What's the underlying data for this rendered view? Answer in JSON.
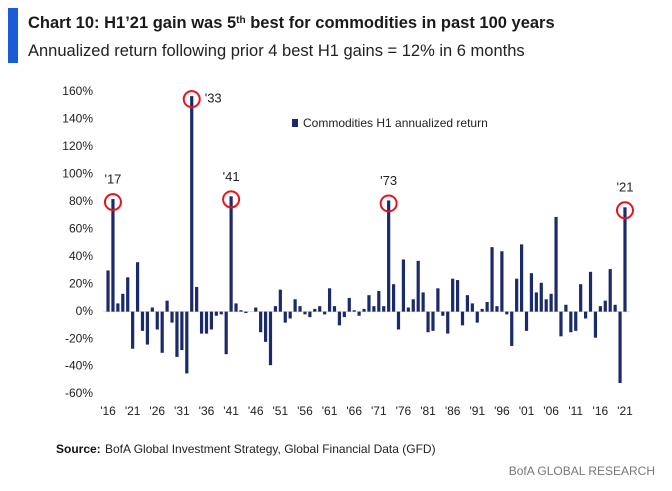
{
  "chart_data": {
    "type": "bar",
    "title": [
      "Chart 10: H1’21 gain was 5",
      "th",
      " best for commodities in past 100 years"
    ],
    "subtitle": "Annualized return following prior 4 best H1 gains = 12% in 6 months",
    "x": [
      1916,
      1917,
      1918,
      1919,
      1920,
      1921,
      1922,
      1923,
      1924,
      1925,
      1926,
      1927,
      1928,
      1929,
      1930,
      1931,
      1932,
      1933,
      1934,
      1935,
      1936,
      1937,
      1938,
      1939,
      1940,
      1941,
      1942,
      1943,
      1944,
      1945,
      1946,
      1947,
      1948,
      1949,
      1950,
      1951,
      1952,
      1953,
      1954,
      1955,
      1956,
      1957,
      1958,
      1959,
      1960,
      1961,
      1962,
      1963,
      1964,
      1965,
      1966,
      1967,
      1968,
      1969,
      1970,
      1971,
      1972,
      1973,
      1974,
      1975,
      1976,
      1977,
      1978,
      1979,
      1980,
      1981,
      1982,
      1983,
      1984,
      1985,
      1986,
      1987,
      1988,
      1989,
      1990,
      1991,
      1992,
      1993,
      1994,
      1995,
      1996,
      1997,
      1998,
      1999,
      2000,
      2001,
      2002,
      2003,
      2004,
      2005,
      2006,
      2007,
      2008,
      2009,
      2010,
      2011,
      2012,
      2013,
      2014,
      2015,
      2016,
      2017,
      2018,
      2019,
      2020,
      2021
    ],
    "series": [
      {
        "name": "Commodities H1 annualized return",
        "color": "#1b2a6b",
        "values": [
          30,
          82,
          6,
          13,
          25,
          -27,
          36,
          -14,
          -24,
          3,
          -13,
          -30,
          8,
          -8,
          -33,
          -28,
          -45,
          157,
          18,
          -16,
          -16,
          -13,
          -3,
          -2,
          -31,
          84,
          6,
          1,
          -1,
          0,
          3,
          -15,
          -22,
          -39,
          4,
          16,
          -8,
          -5,
          9,
          4,
          -2,
          -4,
          2,
          4,
          -2,
          17,
          4,
          -10,
          -4,
          10,
          1,
          -3,
          2,
          12,
          4,
          15,
          4,
          81,
          20,
          -13,
          38,
          3,
          9,
          37,
          14,
          -15,
          -14,
          17,
          -3,
          -16,
          24,
          23,
          -10,
          12,
          6,
          -8,
          2,
          7,
          47,
          4,
          44,
          -2,
          -25,
          24,
          49,
          -14,
          28,
          14,
          21,
          9,
          13,
          69,
          -18,
          5,
          -15,
          -14,
          20,
          -5,
          29,
          -19,
          4,
          8,
          31,
          5,
          -52,
          76
        ]
      }
    ],
    "xlim": [
      1915,
      2022
    ],
    "xticks": [
      {
        "value": 1916,
        "label": "'16"
      },
      {
        "value": 1921,
        "label": "'21"
      },
      {
        "value": 1926,
        "label": "'26"
      },
      {
        "value": 1931,
        "label": "'31"
      },
      {
        "value": 1936,
        "label": "'36"
      },
      {
        "value": 1941,
        "label": "'41"
      },
      {
        "value": 1946,
        "label": "'46"
      },
      {
        "value": 1951,
        "label": "'51"
      },
      {
        "value": 1956,
        "label": "'56"
      },
      {
        "value": 1961,
        "label": "'61"
      },
      {
        "value": 1966,
        "label": "'66"
      },
      {
        "value": 1971,
        "label": "'71"
      },
      {
        "value": 1976,
        "label": "'76"
      },
      {
        "value": 1981,
        "label": "'81"
      },
      {
        "value": 1986,
        "label": "'86"
      },
      {
        "value": 1991,
        "label": "'91"
      },
      {
        "value": 1996,
        "label": "'96"
      },
      {
        "value": 2001,
        "label": "'01"
      },
      {
        "value": 2006,
        "label": "'06"
      },
      {
        "value": 2011,
        "label": "'11"
      },
      {
        "value": 2016,
        "label": "'16"
      },
      {
        "value": 2021,
        "label": "'21"
      }
    ],
    "ylim": [
      -60,
      160
    ],
    "yticks": [
      {
        "value": -60,
        "label": "-60%"
      },
      {
        "value": -40,
        "label": "-40%"
      },
      {
        "value": -20,
        "label": "-20%"
      },
      {
        "value": 0,
        "label": "0%"
      },
      {
        "value": 20,
        "label": "20%"
      },
      {
        "value": 40,
        "label": "40%"
      },
      {
        "value": 60,
        "label": "60%"
      },
      {
        "value": 80,
        "label": "80%"
      },
      {
        "value": 100,
        "label": "100%"
      },
      {
        "value": 120,
        "label": "120%"
      },
      {
        "value": 140,
        "label": "140%"
      },
      {
        "value": 160,
        "label": "160%"
      }
    ],
    "annotations": [
      {
        "text": "'17",
        "x": 1917
      },
      {
        "text": "'33",
        "x": 1933
      },
      {
        "text": "'41",
        "x": 1941
      },
      {
        "text": "'73",
        "x": 1973
      },
      {
        "text": "'21",
        "x": 2021
      }
    ],
    "highlight_color": "#e8141b",
    "source": {
      "label": "Source:",
      "text": "BofA Global Investment Strategy, Global Financial Data (GFD)"
    },
    "footer": "BofA GLOBAL RESEARCH"
  }
}
